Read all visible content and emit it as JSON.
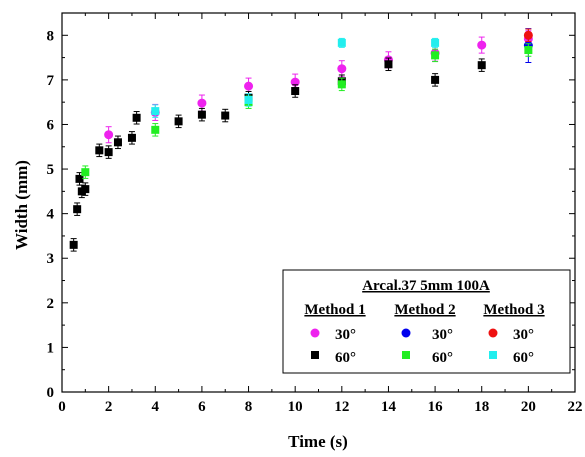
{
  "chart_data": {
    "type": "scatter",
    "title": "",
    "xlabel": "Time (s)",
    "ylabel": "Width (mm)",
    "xlim": [
      0,
      22
    ],
    "ylim": [
      0,
      8.5
    ],
    "xticks": [
      0,
      2,
      4,
      6,
      8,
      10,
      12,
      14,
      16,
      18,
      20,
      22
    ],
    "yticks": [
      0,
      1,
      2,
      3,
      4,
      5,
      6,
      7,
      8
    ],
    "grid": false,
    "legend": {
      "placement": "bottom-right",
      "title": "Arcal.37 5mm 100A",
      "groups": [
        "Method 1",
        "Method 2",
        "Method 3"
      ],
      "angles": [
        "30°",
        "60°"
      ]
    },
    "series": [
      {
        "group": "Method 1",
        "angle": "30°",
        "color": "#ee22ee",
        "marker": "circle",
        "points": [
          {
            "x": 2,
            "y": 5.77,
            "err": 0.18
          },
          {
            "x": 4,
            "y": 6.27,
            "err": 0.18
          },
          {
            "x": 6,
            "y": 6.48,
            "err": 0.18
          },
          {
            "x": 8,
            "y": 6.86,
            "err": 0.18
          },
          {
            "x": 10,
            "y": 6.95,
            "err": 0.18
          },
          {
            "x": 12,
            "y": 7.25,
            "err": 0.18
          },
          {
            "x": 14,
            "y": 7.45,
            "err": 0.18
          },
          {
            "x": 16,
            "y": 7.6,
            "err": 0.18
          },
          {
            "x": 18,
            "y": 7.78,
            "err": 0.18
          },
          {
            "x": 20,
            "y": 7.92,
            "err": 0.18
          }
        ]
      },
      {
        "group": "Method 1",
        "angle": "60°",
        "color": "#000000",
        "marker": "square",
        "points": [
          {
            "x": 0.5,
            "y": 3.3,
            "err": 0.14
          },
          {
            "x": 0.65,
            "y": 4.1,
            "err": 0.14
          },
          {
            "x": 0.75,
            "y": 4.78,
            "err": 0.14
          },
          {
            "x": 0.85,
            "y": 4.5,
            "err": 0.14
          },
          {
            "x": 1.0,
            "y": 4.55,
            "err": 0.14
          },
          {
            "x": 1.6,
            "y": 5.42,
            "err": 0.14
          },
          {
            "x": 2.0,
            "y": 5.38,
            "err": 0.14
          },
          {
            "x": 2.4,
            "y": 5.6,
            "err": 0.14
          },
          {
            "x": 3.0,
            "y": 5.7,
            "err": 0.14
          },
          {
            "x": 3.2,
            "y": 6.15,
            "err": 0.14
          },
          {
            "x": 5.0,
            "y": 6.07,
            "err": 0.14
          },
          {
            "x": 6.0,
            "y": 6.22,
            "err": 0.14
          },
          {
            "x": 7.0,
            "y": 6.2,
            "err": 0.14
          },
          {
            "x": 8.0,
            "y": 6.6,
            "err": 0.14
          },
          {
            "x": 10.0,
            "y": 6.75,
            "err": 0.14
          },
          {
            "x": 12.0,
            "y": 6.97,
            "err": 0.14
          },
          {
            "x": 14.0,
            "y": 7.35,
            "err": 0.14
          },
          {
            "x": 16.0,
            "y": 7.0,
            "err": 0.14
          },
          {
            "x": 18.0,
            "y": 7.33,
            "err": 0.14
          }
        ]
      },
      {
        "group": "Method 2",
        "angle": "30°",
        "color": "#0000ee",
        "marker": "circle",
        "points": [
          {
            "x": 20,
            "y": 7.77,
            "err": 0.38
          }
        ]
      },
      {
        "group": "Method 2",
        "angle": "60°",
        "color": "#22ee22",
        "marker": "square",
        "points": [
          {
            "x": 1.0,
            "y": 4.93,
            "err": 0.14
          },
          {
            "x": 4.0,
            "y": 5.88,
            "err": 0.14
          },
          {
            "x": 8.0,
            "y": 6.5,
            "err": 0.14
          },
          {
            "x": 12.0,
            "y": 6.9,
            "err": 0.14
          },
          {
            "x": 16.0,
            "y": 7.55,
            "err": 0.14
          },
          {
            "x": 20.0,
            "y": 7.67,
            "err": 0.14
          }
        ]
      },
      {
        "group": "Method 3",
        "angle": "30°",
        "color": "#ee1111",
        "marker": "circle",
        "points": [
          {
            "x": 20,
            "y": 8.0,
            "err": 0.14
          }
        ]
      },
      {
        "group": "Method 3",
        "angle": "60°",
        "color": "#22eeee",
        "marker": "square",
        "points": [
          {
            "x": 4.0,
            "y": 6.3,
            "err": 0.14
          },
          {
            "x": 8.0,
            "y": 6.55,
            "err": 0.14
          },
          {
            "x": 12.0,
            "y": 7.83,
            "err": 0.1
          },
          {
            "x": 16.0,
            "y": 7.83,
            "err": 0.1
          }
        ]
      }
    ]
  }
}
